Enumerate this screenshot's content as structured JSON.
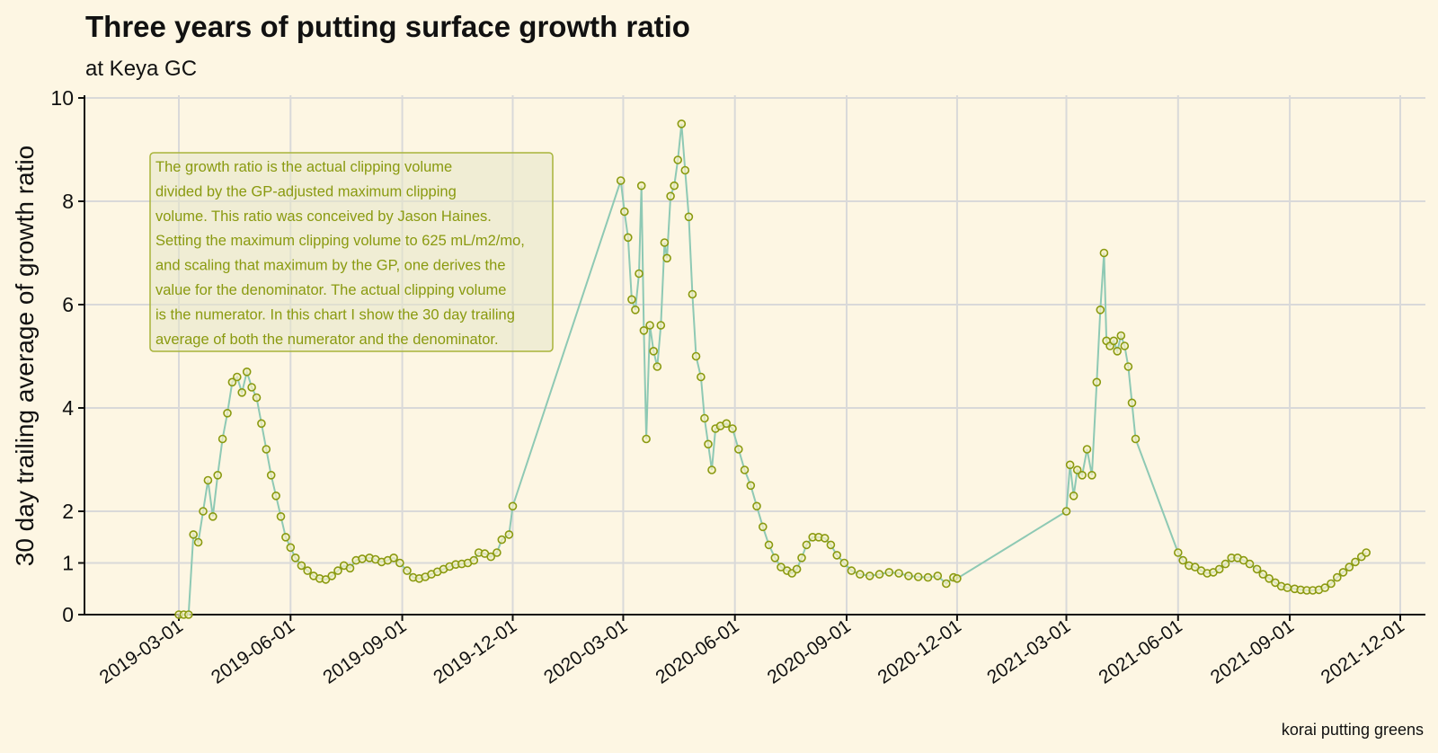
{
  "chart_data": {
    "type": "line",
    "title": "Three years of putting surface growth ratio",
    "subtitle": "at Keya GC",
    "ylabel": "30 day trailing average of growth ratio",
    "xlabel": "",
    "caption": "korai putting greens",
    "ylim": [
      0,
      10
    ],
    "y_scale": "custom-two-segment: 0-1 stretched, 1-10 linear",
    "yticks": [
      0,
      1,
      2,
      4,
      6,
      8,
      10
    ],
    "xlim": [
      "2019-01-10",
      "2021-12-20"
    ],
    "xticks": [
      "2019-03-01",
      "2019-06-01",
      "2019-09-01",
      "2019-12-01",
      "2020-03-01",
      "2020-06-01",
      "2020-09-01",
      "2020-12-01",
      "2021-03-01",
      "2021-06-01",
      "2021-09-01",
      "2021-12-01"
    ],
    "grid": true,
    "colors": {
      "line": "#8ec9b4",
      "marker": "#8a9a10",
      "marker_fill": "#f5efc0",
      "background": "#fdf6e3"
    },
    "annotation": [
      "The growth ratio is the actual clipping volume",
      "divided by the GP-adjusted maximum clipping",
      "volume. This ratio was conceived by Jason Haines.",
      "Setting the maximum clipping volume to 625 mL/m2/mo,",
      "and scaling that maximum by the GP, one derives the",
      "value for the denominator. The actual clipping volume",
      "is the numerator. In this chart I show the 30 day trailing",
      "average of both the numerator and the denominator."
    ],
    "series": [
      {
        "values": [
          {
            "x": "2019-03-01",
            "y": 0
          },
          {
            "x": "2019-03-05",
            "y": 0
          },
          {
            "x": "2019-03-09",
            "y": 0
          },
          {
            "x": "2019-03-13",
            "y": 1.55
          },
          {
            "x": "2019-03-17",
            "y": 1.4
          },
          {
            "x": "2019-03-21",
            "y": 2.0
          },
          {
            "x": "2019-03-25",
            "y": 2.6
          },
          {
            "x": "2019-03-29",
            "y": 1.9
          },
          {
            "x": "2019-04-02",
            "y": 2.7
          },
          {
            "x": "2019-04-06",
            "y": 3.4
          },
          {
            "x": "2019-04-10",
            "y": 3.9
          },
          {
            "x": "2019-04-14",
            "y": 4.5
          },
          {
            "x": "2019-04-18",
            "y": 4.6
          },
          {
            "x": "2019-04-22",
            "y": 4.3
          },
          {
            "x": "2019-04-26",
            "y": 4.7
          },
          {
            "x": "2019-04-30",
            "y": 4.4
          },
          {
            "x": "2019-05-04",
            "y": 4.2
          },
          {
            "x": "2019-05-08",
            "y": 3.7
          },
          {
            "x": "2019-05-12",
            "y": 3.2
          },
          {
            "x": "2019-05-16",
            "y": 2.7
          },
          {
            "x": "2019-05-20",
            "y": 2.3
          },
          {
            "x": "2019-05-24",
            "y": 1.9
          },
          {
            "x": "2019-05-28",
            "y": 1.5
          },
          {
            "x": "2019-06-01",
            "y": 1.3
          },
          {
            "x": "2019-06-05",
            "y": 1.1
          },
          {
            "x": "2019-06-10",
            "y": 0.95
          },
          {
            "x": "2019-06-15",
            "y": 0.85
          },
          {
            "x": "2019-06-20",
            "y": 0.75
          },
          {
            "x": "2019-06-25",
            "y": 0.7
          },
          {
            "x": "2019-06-30",
            "y": 0.68
          },
          {
            "x": "2019-07-05",
            "y": 0.75
          },
          {
            "x": "2019-07-10",
            "y": 0.85
          },
          {
            "x": "2019-07-15",
            "y": 0.95
          },
          {
            "x": "2019-07-20",
            "y": 0.9
          },
          {
            "x": "2019-07-25",
            "y": 1.05
          },
          {
            "x": "2019-07-30",
            "y": 1.08
          },
          {
            "x": "2019-08-05",
            "y": 1.1
          },
          {
            "x": "2019-08-10",
            "y": 1.07
          },
          {
            "x": "2019-08-15",
            "y": 1.02
          },
          {
            "x": "2019-08-20",
            "y": 1.05
          },
          {
            "x": "2019-08-25",
            "y": 1.1
          },
          {
            "x": "2019-08-30",
            "y": 1.0
          },
          {
            "x": "2019-09-05",
            "y": 0.85
          },
          {
            "x": "2019-09-10",
            "y": 0.72
          },
          {
            "x": "2019-09-15",
            "y": 0.7
          },
          {
            "x": "2019-09-20",
            "y": 0.73
          },
          {
            "x": "2019-09-25",
            "y": 0.78
          },
          {
            "x": "2019-09-30",
            "y": 0.83
          },
          {
            "x": "2019-10-05",
            "y": 0.88
          },
          {
            "x": "2019-10-10",
            "y": 0.93
          },
          {
            "x": "2019-10-15",
            "y": 0.97
          },
          {
            "x": "2019-10-20",
            "y": 0.98
          },
          {
            "x": "2019-10-25",
            "y": 1.0
          },
          {
            "x": "2019-10-30",
            "y": 1.05
          },
          {
            "x": "2019-11-03",
            "y": 1.2
          },
          {
            "x": "2019-11-08",
            "y": 1.18
          },
          {
            "x": "2019-11-13",
            "y": 1.12
          },
          {
            "x": "2019-11-18",
            "y": 1.2
          },
          {
            "x": "2019-11-22",
            "y": 1.45
          },
          {
            "x": "2019-11-28",
            "y": 1.55
          },
          {
            "x": "2019-12-01",
            "y": 2.1
          },
          {
            "x": "2020-02-28",
            "y": 8.4
          },
          {
            "x": "2020-03-02",
            "y": 7.8
          },
          {
            "x": "2020-03-05",
            "y": 7.3
          },
          {
            "x": "2020-03-08",
            "y": 6.1
          },
          {
            "x": "2020-03-11",
            "y": 5.9
          },
          {
            "x": "2020-03-14",
            "y": 6.6
          },
          {
            "x": "2020-03-16",
            "y": 8.3
          },
          {
            "x": "2020-03-18",
            "y": 5.5
          },
          {
            "x": "2020-03-20",
            "y": 3.4
          },
          {
            "x": "2020-03-23",
            "y": 5.6
          },
          {
            "x": "2020-03-26",
            "y": 5.1
          },
          {
            "x": "2020-03-29",
            "y": 4.8
          },
          {
            "x": "2020-04-01",
            "y": 5.6
          },
          {
            "x": "2020-04-04",
            "y": 7.2
          },
          {
            "x": "2020-04-06",
            "y": 6.9
          },
          {
            "x": "2020-04-09",
            "y": 8.1
          },
          {
            "x": "2020-04-12",
            "y": 8.3
          },
          {
            "x": "2020-04-15",
            "y": 8.8
          },
          {
            "x": "2020-04-18",
            "y": 9.5
          },
          {
            "x": "2020-04-21",
            "y": 8.6
          },
          {
            "x": "2020-04-24",
            "y": 7.7
          },
          {
            "x": "2020-04-27",
            "y": 6.2
          },
          {
            "x": "2020-04-30",
            "y": 5.0
          },
          {
            "x": "2020-05-04",
            "y": 4.6
          },
          {
            "x": "2020-05-07",
            "y": 3.8
          },
          {
            "x": "2020-05-10",
            "y": 3.3
          },
          {
            "x": "2020-05-13",
            "y": 2.8
          },
          {
            "x": "2020-05-16",
            "y": 3.6
          },
          {
            "x": "2020-05-20",
            "y": 3.65
          },
          {
            "x": "2020-05-25",
            "y": 3.7
          },
          {
            "x": "2020-05-30",
            "y": 3.6
          },
          {
            "x": "2020-06-04",
            "y": 3.2
          },
          {
            "x": "2020-06-09",
            "y": 2.8
          },
          {
            "x": "2020-06-14",
            "y": 2.5
          },
          {
            "x": "2020-06-19",
            "y": 2.1
          },
          {
            "x": "2020-06-24",
            "y": 1.7
          },
          {
            "x": "2020-06-29",
            "y": 1.35
          },
          {
            "x": "2020-07-04",
            "y": 1.1
          },
          {
            "x": "2020-07-09",
            "y": 0.92
          },
          {
            "x": "2020-07-14",
            "y": 0.85
          },
          {
            "x": "2020-07-18",
            "y": 0.8
          },
          {
            "x": "2020-07-22",
            "y": 0.88
          },
          {
            "x": "2020-07-26",
            "y": 1.1
          },
          {
            "x": "2020-07-30",
            "y": 1.35
          },
          {
            "x": "2020-08-04",
            "y": 1.5
          },
          {
            "x": "2020-08-09",
            "y": 1.5
          },
          {
            "x": "2020-08-14",
            "y": 1.48
          },
          {
            "x": "2020-08-19",
            "y": 1.35
          },
          {
            "x": "2020-08-24",
            "y": 1.15
          },
          {
            "x": "2020-08-30",
            "y": 1.0
          },
          {
            "x": "2020-09-05",
            "y": 0.85
          },
          {
            "x": "2020-09-12",
            "y": 0.78
          },
          {
            "x": "2020-09-20",
            "y": 0.75
          },
          {
            "x": "2020-09-28",
            "y": 0.78
          },
          {
            "x": "2020-10-06",
            "y": 0.82
          },
          {
            "x": "2020-10-14",
            "y": 0.8
          },
          {
            "x": "2020-10-22",
            "y": 0.75
          },
          {
            "x": "2020-10-30",
            "y": 0.73
          },
          {
            "x": "2020-11-07",
            "y": 0.72
          },
          {
            "x": "2020-11-15",
            "y": 0.75
          },
          {
            "x": "2020-11-22",
            "y": 0.6
          },
          {
            "x": "2020-11-28",
            "y": 0.72
          },
          {
            "x": "2020-12-01",
            "y": 0.7
          },
          {
            "x": "2021-03-01",
            "y": 2.0
          },
          {
            "x": "2021-03-04",
            "y": 2.9
          },
          {
            "x": "2021-03-07",
            "y": 2.3
          },
          {
            "x": "2021-03-10",
            "y": 2.8
          },
          {
            "x": "2021-03-14",
            "y": 2.7
          },
          {
            "x": "2021-03-18",
            "y": 3.2
          },
          {
            "x": "2021-03-22",
            "y": 2.7
          },
          {
            "x": "2021-03-26",
            "y": 4.5
          },
          {
            "x": "2021-03-29",
            "y": 5.9
          },
          {
            "x": "2021-04-01",
            "y": 7.0
          },
          {
            "x": "2021-04-03",
            "y": 5.3
          },
          {
            "x": "2021-04-06",
            "y": 5.2
          },
          {
            "x": "2021-04-09",
            "y": 5.3
          },
          {
            "x": "2021-04-12",
            "y": 5.1
          },
          {
            "x": "2021-04-15",
            "y": 5.4
          },
          {
            "x": "2021-04-18",
            "y": 5.2
          },
          {
            "x": "2021-04-21",
            "y": 4.8
          },
          {
            "x": "2021-04-24",
            "y": 4.1
          },
          {
            "x": "2021-04-27",
            "y": 3.4
          },
          {
            "x": "2021-06-01",
            "y": 1.2
          },
          {
            "x": "2021-06-05",
            "y": 1.05
          },
          {
            "x": "2021-06-10",
            "y": 0.95
          },
          {
            "x": "2021-06-15",
            "y": 0.92
          },
          {
            "x": "2021-06-20",
            "y": 0.85
          },
          {
            "x": "2021-06-25",
            "y": 0.8
          },
          {
            "x": "2021-06-30",
            "y": 0.82
          },
          {
            "x": "2021-07-05",
            "y": 0.88
          },
          {
            "x": "2021-07-10",
            "y": 0.98
          },
          {
            "x": "2021-07-15",
            "y": 1.1
          },
          {
            "x": "2021-07-20",
            "y": 1.1
          },
          {
            "x": "2021-07-25",
            "y": 1.05
          },
          {
            "x": "2021-07-30",
            "y": 0.98
          },
          {
            "x": "2021-08-05",
            "y": 0.88
          },
          {
            "x": "2021-08-10",
            "y": 0.78
          },
          {
            "x": "2021-08-15",
            "y": 0.7
          },
          {
            "x": "2021-08-20",
            "y": 0.62
          },
          {
            "x": "2021-08-25",
            "y": 0.55
          },
          {
            "x": "2021-08-30",
            "y": 0.52
          },
          {
            "x": "2021-09-05",
            "y": 0.5
          },
          {
            "x": "2021-09-10",
            "y": 0.48
          },
          {
            "x": "2021-09-15",
            "y": 0.47
          },
          {
            "x": "2021-09-20",
            "y": 0.47
          },
          {
            "x": "2021-09-25",
            "y": 0.48
          },
          {
            "x": "2021-09-30",
            "y": 0.52
          },
          {
            "x": "2021-10-05",
            "y": 0.6
          },
          {
            "x": "2021-10-10",
            "y": 0.72
          },
          {
            "x": "2021-10-15",
            "y": 0.82
          },
          {
            "x": "2021-10-20",
            "y": 0.92
          },
          {
            "x": "2021-10-25",
            "y": 1.02
          },
          {
            "x": "2021-10-30",
            "y": 1.12
          },
          {
            "x": "2021-11-03",
            "y": 1.2
          }
        ]
      }
    ]
  }
}
